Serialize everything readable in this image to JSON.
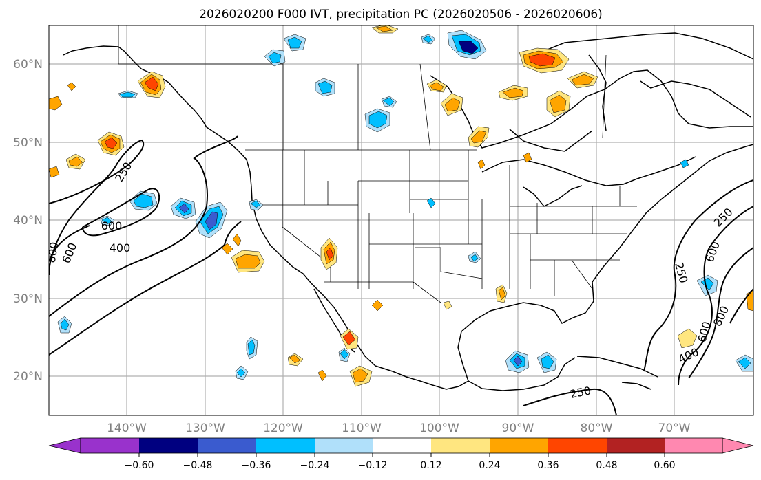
{
  "title": "2026020200 F000 IVT, precipitation PC (2026020506 - 2026020606)",
  "lat_labels": [
    "60°N",
    "50°N",
    "40°N",
    "30°N",
    "20°N"
  ],
  "lon_labels": [
    "140°W",
    "130°W",
    "120°W",
    "110°W",
    "100°W",
    "90°W",
    "80°W",
    "70°W"
  ],
  "contour_labels": [
    "250",
    "600",
    "400",
    "800",
    "600",
    "250",
    "600",
    "250",
    "600",
    "800",
    "400",
    "250"
  ],
  "colorbar": {
    "ticks": [
      "−0.60",
      "−0.48",
      "−0.36",
      "−0.24",
      "−0.12",
      "0.12",
      "0.24",
      "0.36",
      "0.48",
      "0.60"
    ],
    "colors": [
      "#9932cc",
      "#000080",
      "#3a5bcf",
      "#00bfff",
      "#b0e0fa",
      "#ffffff",
      "#ffe680",
      "#ffa500",
      "#ff4500",
      "#b22222",
      "#ff88b0"
    ]
  },
  "colors": {
    "axis_label": "#808080",
    "grid": "#b0b0b0",
    "frame": "#000000"
  }
}
